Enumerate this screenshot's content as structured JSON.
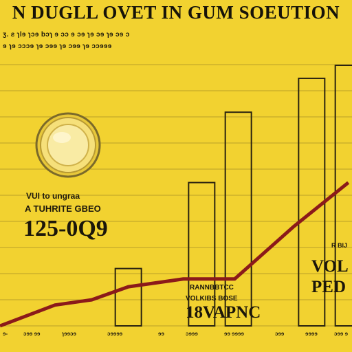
{
  "title": "N DUGLL OVET IN GUM SOEUTION",
  "subtitle_lines": [
    "ʒ. ƨ ɿlɘ ɿɔɘ bɔɿ ɘ ɔɔ ɘ ɔɘ ɿɘ ɔɘ ɿɘ ɔɘ ɔ",
    "ɘ ɿɘ ɔɔɔɘ ɿɘ ɔɘɘ ɿɘ ɔɘɘ ɿɘ ɔɔɘɘɘ"
  ],
  "annotations": {
    "left_line1": "VUI to ungraa",
    "left_line2": "A TUHRITE GBEO",
    "left_value": "125-0Q9",
    "right_small": "R BIJ",
    "right_big1": "VOL",
    "right_big2": "PED",
    "center_line1": "RANNBBTCC",
    "center_line2": "VOLKIBS BOSE",
    "center_value": "18VAPNC"
  },
  "colors": {
    "background": "#F2D230",
    "grid": "#B9A027",
    "bar_outline": "#2A2310",
    "line": "#8B1A1A",
    "text": "#161309"
  },
  "icon": "coin-icon",
  "chart_data": {
    "type": "bar",
    "title": "N DUGLL OVET IN GUM SOEUTION",
    "bars": [
      {
        "x": 0.0,
        "value": 0.0
      },
      {
        "x": 1.0,
        "value": 0.0
      },
      {
        "x": 2.0,
        "value": 0.0
      },
      {
        "x": 3.0,
        "value": 0.22
      },
      {
        "x": 4.0,
        "value": 0.0
      },
      {
        "x": 5.0,
        "value": 0.55
      },
      {
        "x": 6.0,
        "value": 0.82
      },
      {
        "x": 7.0,
        "value": 0.0
      },
      {
        "x": 8.0,
        "value": 0.95
      },
      {
        "x": 9.0,
        "value": 1.0
      }
    ],
    "line": {
      "points": [
        [
          0.0,
          0.0
        ],
        [
          1.5,
          0.08
        ],
        [
          2.5,
          0.1
        ],
        [
          3.5,
          0.15
        ],
        [
          5.0,
          0.18
        ],
        [
          6.4,
          0.18
        ],
        [
          8.0,
          0.38
        ],
        [
          9.5,
          0.55
        ]
      ]
    },
    "tick_labels": [
      "ɘ-",
      "ɔɘɘ ɘɘ",
      "ɿɘɘɔɘ",
      "ɔɘɘɘɘ",
      "ɘɘ",
      "ɔɘɘɘ",
      "ɘɘ ɘɘɘɘ",
      "ɔɘɘ",
      "ɘɘɘɘ",
      "ɔɘɘ ɘ"
    ],
    "ylim": [
      0,
      1.0
    ],
    "xlim": [
      0,
      9.6
    ],
    "grid": true
  }
}
